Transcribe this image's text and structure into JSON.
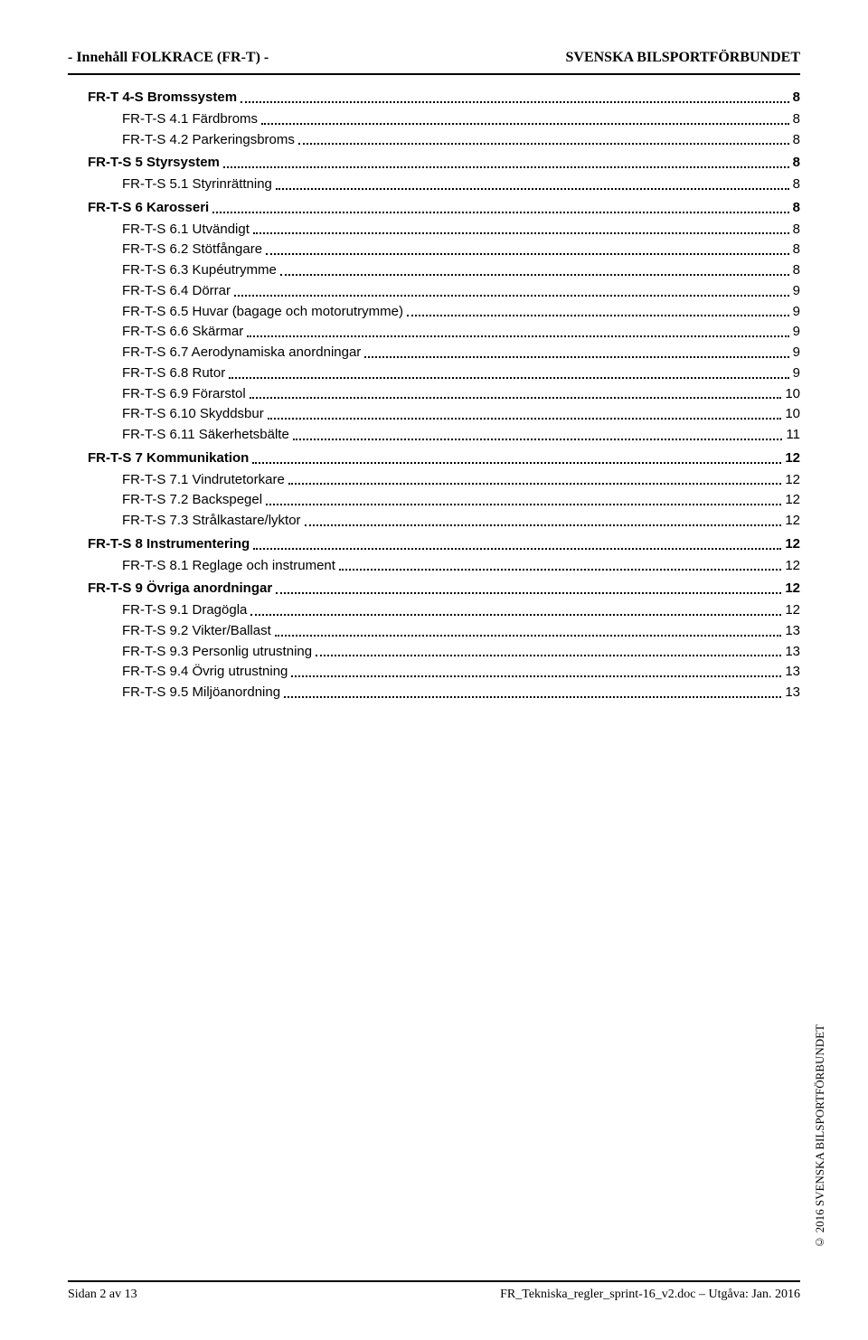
{
  "header": {
    "left": "- Innehåll FOLKRACE (FR-T) -",
    "right": "SVENSKA BILSPORTFÖRBUNDET"
  },
  "toc": [
    {
      "level": 1,
      "label": "FR-T 4-S  Bromssystem",
      "page": "8"
    },
    {
      "level": 2,
      "label": "FR-T-S 4.1   Färdbroms",
      "page": "8"
    },
    {
      "level": 2,
      "label": "FR-T-S 4.2   Parkeringsbroms",
      "page": "8"
    },
    {
      "level": 1,
      "label": "FR-T-S 5  Styrsystem",
      "page": "8"
    },
    {
      "level": 2,
      "label": "FR-T-S 5.1   Styrinrättning",
      "page": "8"
    },
    {
      "level": 1,
      "label": "FR-T-S 6  Karosseri",
      "page": "8"
    },
    {
      "level": 2,
      "label": "FR-T-S 6.1   Utvändigt",
      "page": "8"
    },
    {
      "level": 2,
      "label": "FR-T-S 6.2   Stötfångare",
      "page": "8"
    },
    {
      "level": 2,
      "label": "FR-T-S 6.3   Kupéutrymme",
      "page": "8"
    },
    {
      "level": 2,
      "label": "FR-T-S 6.4   Dörrar",
      "page": "9"
    },
    {
      "level": 2,
      "label": "FR-T-S 6.5   Huvar (bagage och motorutrymme)",
      "page": "9"
    },
    {
      "level": 2,
      "label": "FR-T-S 6.6   Skärmar",
      "page": "9"
    },
    {
      "level": 2,
      "label": "FR-T-S 6.7   Aerodynamiska anordningar",
      "page": "9"
    },
    {
      "level": 2,
      "label": "FR-T-S 6.8   Rutor",
      "page": "9"
    },
    {
      "level": 2,
      "label": "FR-T-S 6.9   Förarstol",
      "page": "10"
    },
    {
      "level": 2,
      "label": "FR-T-S 6.10   Skyddsbur",
      "page": "10"
    },
    {
      "level": 2,
      "label": "FR-T-S 6.11   Säkerhetsbälte",
      "page": "11"
    },
    {
      "level": 1,
      "label": "FR-T-S 7  Kommunikation",
      "page": "12"
    },
    {
      "level": 2,
      "label": "FR-T-S 7.1 Vindrutetorkare",
      "page": "12"
    },
    {
      "level": 2,
      "label": "FR-T-S 7.2   Backspegel",
      "page": "12"
    },
    {
      "level": 2,
      "label": "FR-T-S 7.3   Strålkastare/lyktor",
      "page": "12"
    },
    {
      "level": 1,
      "label": "FR-T-S 8  Instrumentering",
      "page": "12"
    },
    {
      "level": 2,
      "label": "FR-T-S 8.1   Reglage och instrument",
      "page": "12"
    },
    {
      "level": 1,
      "label": "FR-T-S 9  Övriga anordningar",
      "page": "12"
    },
    {
      "level": 2,
      "label": "FR-T-S 9.1   Dragögla",
      "page": "12"
    },
    {
      "level": 2,
      "label": "FR-T-S 9.2   Vikter/Ballast",
      "page": "13"
    },
    {
      "level": 2,
      "label": "FR-T-S 9.3   Personlig utrustning",
      "page": "13"
    },
    {
      "level": 2,
      "label": "FR-T-S 9.4   Övrig utrustning",
      "page": "13"
    },
    {
      "level": 2,
      "label": "FR-T-S 9.5   Miljöanordning",
      "page": "13"
    }
  ],
  "footer": {
    "left": "Sidan 2 av 13",
    "right": "FR_Tekniska_regler_sprint-16_v2.doc – Utgåva: Jan. 2016"
  },
  "copyright": "© 2016 SVENSKA BILSPORTFÖRBUNDET"
}
